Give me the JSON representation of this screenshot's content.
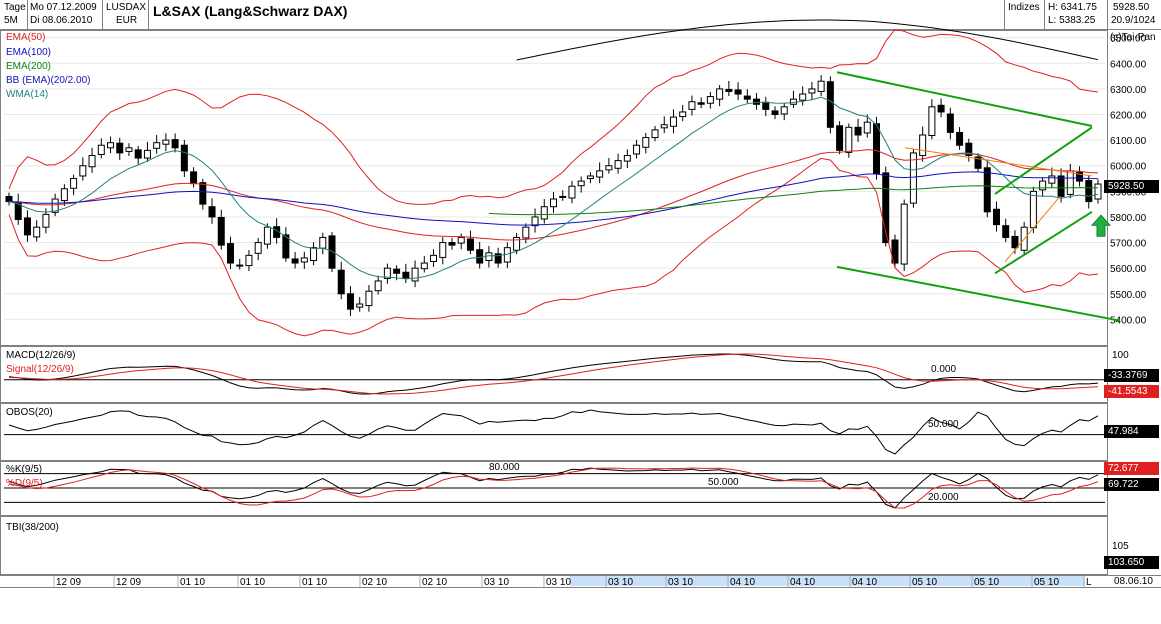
{
  "header": {
    "period_label": "Tage",
    "timeframe": "5M",
    "date_from": "Mo 07.12.2009",
    "date_to": "Di 08.06.2010",
    "symbol": "LUSDAX",
    "currency": "EUR",
    "title": "L&SAX (Lang&Schwarz DAX)",
    "category": "Indizes",
    "high": "H: 6341.75",
    "low": "L: 5383.25",
    "last_price": "5928.50",
    "range_info": "20.9/1024",
    "brand": "(c)Tai-Pan"
  },
  "colors": {
    "up_candle": "#ffffff",
    "down_candle": "#000000",
    "ema50": "#e02020",
    "ema100": "#1010c0",
    "ema200": "#108010",
    "bollinger": "#e02020",
    "wma14": "#208080",
    "channel": "#10a010",
    "orange_trend": "#f08000",
    "arrow": "#20b040",
    "signal": "#e02020",
    "macd": "#000000",
    "value_box": "#000000",
    "signal_box": "#e02020",
    "timeline_highlight": "#c8e0f8"
  },
  "chart_data": [
    {
      "type": "candlestick",
      "title": "L&SAX (Lang&Schwarz DAX)",
      "legend": [
        "EMA(50)",
        "EMA(100)",
        "EMA(200)",
        "BB (EMA)(20/2.00)",
        "WMA(14)"
      ],
      "y_ticks": [
        5400,
        5500,
        5600,
        5700,
        5800,
        5900,
        6000,
        6100,
        6200,
        6300,
        6400,
        6500
      ],
      "ylim": [
        5300,
        6530
      ],
      "last_value_label": "5928.50",
      "x_ticks": [
        "12 09",
        "12 09",
        "01 10",
        "01 10",
        "01 10",
        "02 10",
        "02 10",
        "03 10",
        "03 10",
        "03 10",
        "03 10",
        "04 10",
        "04 10",
        "04 10",
        "05 10",
        "05 10",
        "05 10",
        "L"
      ],
      "closes": [
        5860,
        5790,
        5730,
        5760,
        5810,
        5870,
        5910,
        5950,
        6000,
        6040,
        6080,
        6090,
        6050,
        6070,
        6030,
        6060,
        6090,
        6100,
        6070,
        5980,
        5930,
        5850,
        5800,
        5690,
        5620,
        5610,
        5650,
        5700,
        5760,
        5720,
        5640,
        5620,
        5640,
        5680,
        5720,
        5600,
        5500,
        5440,
        5460,
        5510,
        5550,
        5600,
        5580,
        5560,
        5600,
        5620,
        5650,
        5700,
        5690,
        5720,
        5670,
        5620,
        5660,
        5620,
        5680,
        5720,
        5760,
        5800,
        5840,
        5870,
        5880,
        5920,
        5940,
        5960,
        5980,
        6000,
        6020,
        6040,
        6080,
        6110,
        6140,
        6160,
        6190,
        6210,
        6250,
        6240,
        6270,
        6300,
        6290,
        6280,
        6260,
        6240,
        6220,
        6200,
        6230,
        6260,
        6280,
        6300,
        6330,
        6150,
        6060,
        6150,
        6120,
        6170,
        5970,
        5700,
        5620,
        5850,
        6050,
        6120,
        6230,
        6210,
        6130,
        6080,
        6040,
        5990,
        5820,
        5770,
        5720,
        5680,
        5760,
        5900,
        5940,
        5960,
        5880,
        5980,
        5940,
        5860,
        5928.5
      ],
      "series": [
        {
          "name": "EMA(50)"
        },
        {
          "name": "EMA(100)"
        },
        {
          "name": "EMA(200)"
        },
        {
          "name": "BB (EMA)(20/2.00)"
        },
        {
          "name": "WMA(14)"
        }
      ]
    },
    {
      "type": "line",
      "title": "MACD(12/26/9)",
      "series": [
        {
          "name": "MACD(12/26/9)"
        },
        {
          "name": "Signal(12/26/9)"
        }
      ],
      "y_ticks": [
        100
      ],
      "ref_line_label": "0.000",
      "value_labels": [
        "-33.3769",
        "-41.5543"
      ]
    },
    {
      "type": "line",
      "title": "OBOS(20)",
      "ref_line_label": "50.000",
      "value_labels": [
        "47.984"
      ]
    },
    {
      "type": "line",
      "title": "%K(9/5)",
      "series": [
        {
          "name": "%K(9/5)"
        },
        {
          "name": "%D(9/5)"
        }
      ],
      "ref_line_labels": [
        "80.000",
        "50.000",
        "20.000"
      ],
      "value_labels": [
        "72.677",
        "69.722"
      ]
    },
    {
      "type": "line",
      "title": "TBI(38/200)",
      "y_ticks": [
        105
      ],
      "value_labels": [
        "103.650"
      ]
    }
  ],
  "footer": {
    "date_label": "08.06.10"
  }
}
